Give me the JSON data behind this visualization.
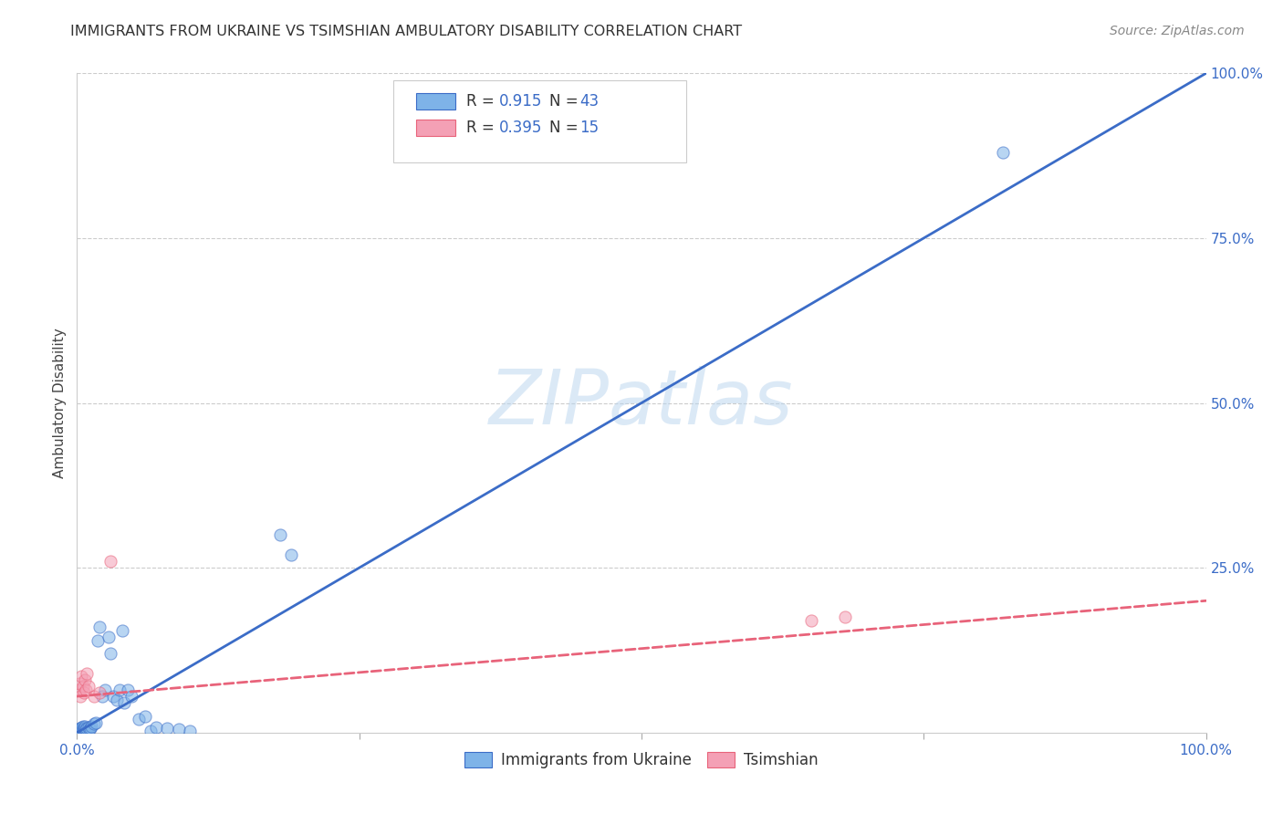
{
  "title": "IMMIGRANTS FROM UKRAINE VS TSIMSHIAN AMBULATORY DISABILITY CORRELATION CHART",
  "source": "Source: ZipAtlas.com",
  "ylabel": "Ambulatory Disability",
  "background": "#ffffff",
  "watermark": "ZIPatlas",
  "blue_color": "#7EB3E8",
  "pink_color": "#F4A0B5",
  "blue_line_color": "#3B6CC7",
  "pink_line_color": "#E8637A",
  "ukraine_points_x": [
    0.001,
    0.002,
    0.003,
    0.003,
    0.004,
    0.004,
    0.005,
    0.005,
    0.006,
    0.006,
    0.007,
    0.007,
    0.008,
    0.009,
    0.01,
    0.011,
    0.012,
    0.013,
    0.015,
    0.017,
    0.018,
    0.02,
    0.022,
    0.025,
    0.028,
    0.03,
    0.032,
    0.035,
    0.038,
    0.04,
    0.042,
    0.045,
    0.048,
    0.055,
    0.06,
    0.065,
    0.07,
    0.08,
    0.09,
    0.1,
    0.18,
    0.19,
    0.82
  ],
  "ukraine_points_y": [
    0.005,
    0.005,
    0.004,
    0.007,
    0.003,
    0.008,
    0.005,
    0.009,
    0.004,
    0.007,
    0.006,
    0.01,
    0.005,
    0.007,
    0.008,
    0.005,
    0.006,
    0.01,
    0.013,
    0.015,
    0.14,
    0.16,
    0.055,
    0.065,
    0.145,
    0.12,
    0.055,
    0.05,
    0.065,
    0.155,
    0.045,
    0.065,
    0.055,
    0.02,
    0.025,
    0.003,
    0.008,
    0.007,
    0.005,
    0.003,
    0.3,
    0.27,
    0.88
  ],
  "tsimshian_points_x": [
    0.001,
    0.002,
    0.003,
    0.004,
    0.005,
    0.006,
    0.007,
    0.008,
    0.009,
    0.01,
    0.015,
    0.02,
    0.03,
    0.65,
    0.68
  ],
  "tsimshian_points_y": [
    0.065,
    0.075,
    0.055,
    0.085,
    0.07,
    0.06,
    0.08,
    0.065,
    0.09,
    0.07,
    0.055,
    0.06,
    0.26,
    0.17,
    0.175
  ],
  "blue_line_x": [
    0.0,
    1.0
  ],
  "blue_line_y": [
    0.0,
    1.0
  ],
  "pink_line_x": [
    0.0,
    1.0
  ],
  "pink_line_y": [
    0.055,
    0.2
  ],
  "xlim": [
    0.0,
    1.0
  ],
  "ylim": [
    0.0,
    1.0
  ],
  "ytick_vals": [
    0.25,
    0.5,
    0.75,
    1.0
  ],
  "ytick_labels": [
    "25.0%",
    "50.0%",
    "75.0%",
    "100.0%"
  ],
  "xtick_vals": [
    0.0,
    1.0
  ],
  "xtick_labels": [
    "0.0%",
    "100.0%"
  ],
  "legend1_blue_label": "R = 0.915",
  "legend1_blue_n": "N = 43",
  "legend1_pink_label": "R = 0.395",
  "legend1_pink_n": "N = 15",
  "legend2_labels": [
    "Immigrants from Ukraine",
    "Tsimshian"
  ]
}
